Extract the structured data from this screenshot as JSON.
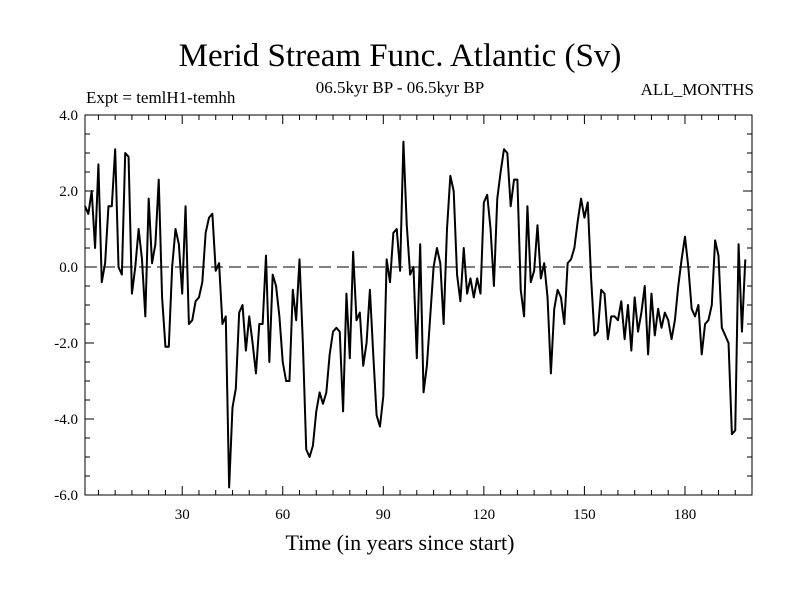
{
  "chart_data": {
    "type": "line",
    "title": "Merid Stream Func. Atlantic (Sv)",
    "subtitle": "06.5kyr BP - 06.5kyr BP",
    "expt_label": "Expt = temlH1-temhh",
    "months_label": "ALL_MONTHS",
    "xlabel": "Time (in years since start)",
    "ylabel": "",
    "xlim": [
      1,
      200
    ],
    "ylim": [
      -6.0,
      4.0
    ],
    "xticks": [
      30,
      60,
      90,
      120,
      150,
      180
    ],
    "xtick_labels": [
      "30",
      "60",
      "90",
      "120",
      "150",
      "180"
    ],
    "yticks": [
      -6,
      -4,
      -2,
      0,
      2,
      4
    ],
    "ytick_labels": [
      "-6.0",
      "-4.0",
      "-2.0",
      "0.0",
      "2.0",
      "4.0"
    ],
    "zero_line": "dashed",
    "series": [
      {
        "name": "Merid Stream Func. Atlantic",
        "x_start": 1,
        "x_step": 1,
        "values": [
          1.6,
          1.4,
          2.0,
          0.5,
          2.7,
          -0.4,
          0.1,
          1.6,
          1.6,
          3.1,
          0.0,
          -0.2,
          3.0,
          2.9,
          -0.7,
          0.0,
          1.0,
          0.2,
          -1.3,
          1.8,
          0.1,
          0.6,
          2.3,
          -0.8,
          -2.1,
          -2.1,
          0.0,
          1.0,
          0.6,
          -0.7,
          1.6,
          -1.5,
          -1.4,
          -0.9,
          -0.8,
          -0.4,
          0.9,
          1.3,
          1.4,
          -0.1,
          0.1,
          -1.5,
          -1.3,
          -5.8,
          -3.7,
          -3.2,
          -1.2,
          -1.0,
          -2.2,
          -1.3,
          -2.0,
          -2.8,
          -1.5,
          -1.5,
          0.3,
          -2.5,
          -0.2,
          -0.5,
          -1.3,
          -2.5,
          -3.0,
          -3.0,
          -0.6,
          -1.4,
          0.2,
          -2.0,
          -4.8,
          -5.0,
          -4.7,
          -3.8,
          -3.3,
          -3.6,
          -3.3,
          -2.3,
          -1.7,
          -1.6,
          -1.7,
          -3.8,
          -0.7,
          -2.4,
          0.4,
          -1.4,
          -1.2,
          -2.6,
          -2.0,
          -0.6,
          -2.3,
          -3.9,
          -4.2,
          -3.4,
          0.2,
          -0.4,
          0.9,
          1.0,
          -0.1,
          3.3,
          1.1,
          -0.2,
          0.0,
          -2.4,
          0.6,
          -3.3,
          -2.6,
          -1.3,
          0.0,
          0.5,
          0.1,
          -1.5,
          1.0,
          2.4,
          2.0,
          -0.2,
          -0.9,
          0.5,
          -0.7,
          -0.3,
          -0.8,
          -0.3,
          -0.7,
          1.7,
          1.9,
          1.0,
          -0.5,
          1.8,
          2.5,
          3.1,
          3.0,
          1.6,
          2.3,
          2.3,
          -0.6,
          -1.3,
          1.6,
          -0.4,
          -0.1,
          1.1,
          -0.3,
          0.1,
          -0.8,
          -2.8,
          -1.1,
          -0.6,
          -0.8,
          -1.5,
          0.1,
          0.2,
          0.5,
          1.2,
          1.8,
          1.3,
          1.7,
          -0.3,
          -1.8,
          -1.7,
          -0.6,
          -0.7,
          -1.9,
          -1.3,
          -1.3,
          -1.4,
          -0.9,
          -1.9,
          -1.0,
          -2.2,
          -0.8,
          -1.7,
          -1.2,
          -0.5,
          -2.3,
          -0.7,
          -1.8,
          -1.1,
          -1.6,
          -1.2,
          -1.4,
          -1.9,
          -1.4,
          -0.5,
          0.2,
          0.8,
          0.0,
          -1.1,
          -1.3,
          -1.0,
          -2.3,
          -1.5,
          -1.4,
          -1.0,
          0.7,
          0.3,
          -1.6,
          -1.8,
          -2.0,
          -4.4,
          -4.3,
          0.6,
          -1.7,
          0.2
        ]
      }
    ]
  }
}
